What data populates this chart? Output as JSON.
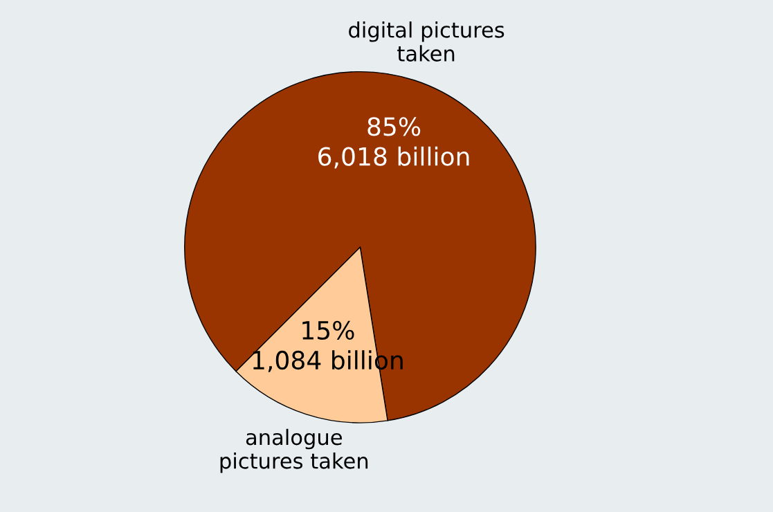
{
  "chart_data": {
    "type": "pie",
    "categories": [
      "digital pictures\ntaken",
      "analogue\npictures taken"
    ],
    "values": [
      85,
      15
    ],
    "value_labels": [
      "85%\n6,018 billion",
      "15%\n1,084 billion"
    ],
    "colors": [
      "#993300",
      "#ffcc99"
    ],
    "legend": false
  }
}
